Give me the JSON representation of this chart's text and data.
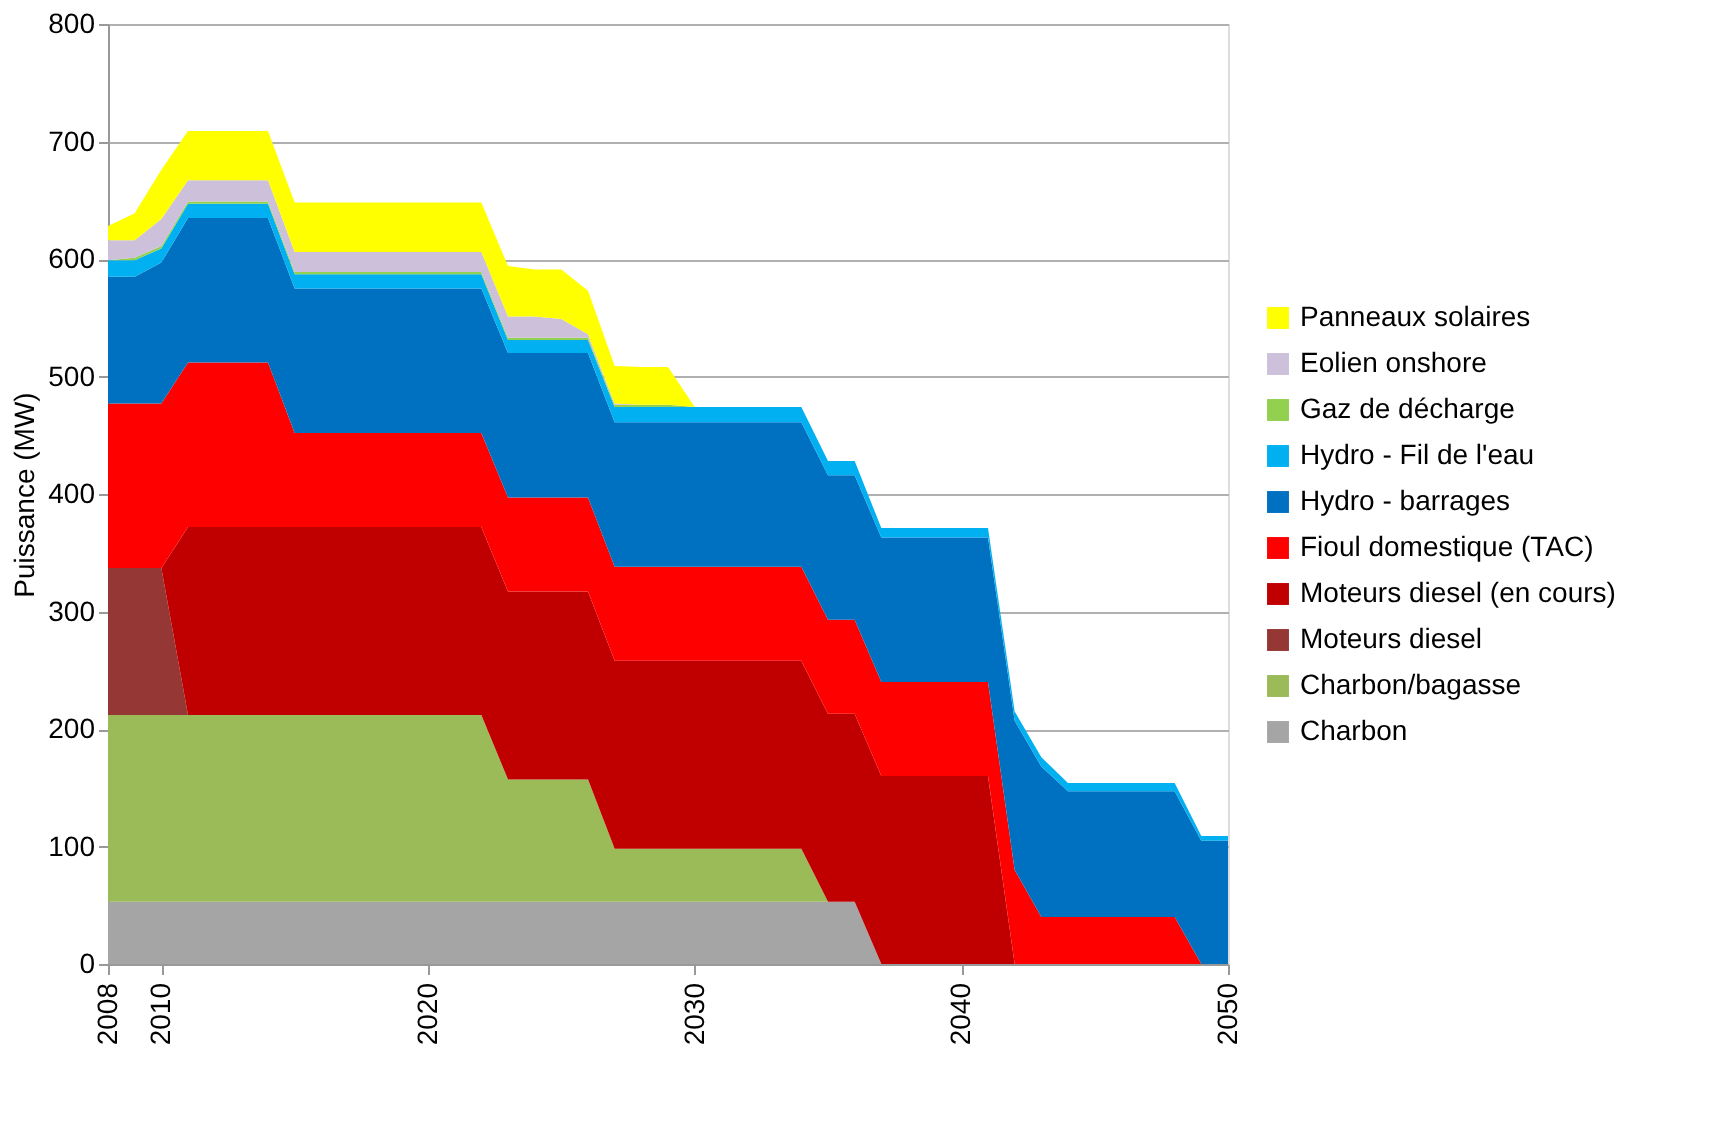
{
  "chart_data": {
    "type": "area",
    "stacked": true,
    "ylabel": "Puissance (MW)",
    "legend": "right",
    "grid": "y",
    "x": [
      2008,
      2009,
      2010,
      2011,
      2012,
      2013,
      2014,
      2015,
      2016,
      2017,
      2018,
      2019,
      2020,
      2021,
      2022,
      2023,
      2024,
      2025,
      2026,
      2027,
      2028,
      2029,
      2030,
      2031,
      2032,
      2033,
      2034,
      2035,
      2036,
      2037,
      2038,
      2039,
      2040,
      2041,
      2042,
      2043,
      2044,
      2045,
      2046,
      2047,
      2048,
      2049,
      2050
    ],
    "xlim": [
      2008,
      2050
    ],
    "xticks": [
      2008,
      2010,
      2020,
      2030,
      2040,
      2050
    ],
    "ylim": [
      0,
      800
    ],
    "yticks": [
      0,
      100,
      200,
      300,
      400,
      500,
      600,
      700,
      800
    ],
    "series": [
      {
        "name": "Charbon",
        "color": "#a5a5a5",
        "values": [
          53,
          53,
          53,
          53,
          53,
          53,
          53,
          53,
          53,
          53,
          53,
          53,
          53,
          53,
          53,
          53,
          53,
          53,
          53,
          53,
          53,
          53,
          53,
          53,
          53,
          53,
          53,
          53,
          53,
          0,
          0,
          0,
          0,
          0,
          0,
          0,
          0,
          0,
          0,
          0,
          0,
          0,
          0
        ]
      },
      {
        "name": "Charbon/bagasse",
        "color": "#9bbb59",
        "values": [
          159,
          159,
          159,
          159,
          159,
          159,
          159,
          159,
          159,
          159,
          159,
          159,
          159,
          159,
          159,
          104,
          104,
          104,
          104,
          45,
          45,
          45,
          45,
          45,
          45,
          45,
          45,
          0,
          0,
          0,
          0,
          0,
          0,
          0,
          0,
          0,
          0,
          0,
          0,
          0,
          0,
          0,
          0
        ]
      },
      {
        "name": "Moteurs diesel",
        "color": "#953735",
        "values": [
          125,
          125,
          125,
          0,
          0,
          0,
          0,
          0,
          0,
          0,
          0,
          0,
          0,
          0,
          0,
          0,
          0,
          0,
          0,
          0,
          0,
          0,
          0,
          0,
          0,
          0,
          0,
          0,
          0,
          0,
          0,
          0,
          0,
          0,
          0,
          0,
          0,
          0,
          0,
          0,
          0,
          0,
          0
        ]
      },
      {
        "name": "Moteurs diesel (en cours)",
        "color": "#c00000",
        "values": [
          0,
          0,
          0,
          160,
          160,
          160,
          160,
          160,
          160,
          160,
          160,
          160,
          160,
          160,
          160,
          160,
          160,
          160,
          160,
          160,
          160,
          160,
          160,
          160,
          160,
          160,
          160,
          160,
          160,
          160,
          160,
          160,
          160,
          160,
          0,
          0,
          0,
          0,
          0,
          0,
          0,
          0,
          0
        ]
      },
      {
        "name": "Fioul domestique (TAC)",
        "color": "#ff0000",
        "values": [
          140,
          140,
          140,
          140,
          140,
          140,
          140,
          80,
          80,
          80,
          80,
          80,
          80,
          80,
          80,
          80,
          80,
          80,
          80,
          80,
          80,
          80,
          80,
          80,
          80,
          80,
          80,
          80,
          80,
          80,
          80,
          80,
          80,
          80,
          80,
          40,
          40,
          40,
          40,
          40,
          40,
          0,
          0
        ]
      },
      {
        "name": "Hydro - barrages",
        "color": "#0070c0",
        "values": [
          108,
          108,
          120,
          123,
          123,
          123,
          123,
          123,
          123,
          123,
          123,
          123,
          123,
          123,
          123,
          123,
          123,
          123,
          123,
          123,
          123,
          123,
          123,
          123,
          123,
          123,
          123,
          123,
          123,
          123,
          123,
          123,
          123,
          123,
          127,
          128,
          107,
          107,
          107,
          107,
          107,
          105,
          105
        ]
      },
      {
        "name": "Hydro - Fil de l'eau",
        "color": "#00b0f0",
        "values": [
          14,
          14,
          12,
          12,
          12,
          12,
          12,
          12,
          12,
          12,
          12,
          12,
          12,
          12,
          12,
          11,
          11,
          11,
          11,
          13,
          13,
          13,
          13,
          13,
          13,
          13,
          13,
          12,
          12,
          8,
          8,
          8,
          8,
          8,
          8,
          8,
          7,
          7,
          7,
          7,
          7,
          4,
          4
        ]
      },
      {
        "name": "Gaz de décharge",
        "color": "#92d050",
        "values": [
          0,
          2,
          2,
          2,
          2,
          2,
          2,
          2,
          2,
          2,
          2,
          2,
          2,
          2,
          2,
          2,
          2,
          2,
          2,
          2,
          2,
          2,
          0,
          0,
          0,
          0,
          0,
          0,
          0,
          0,
          0,
          0,
          0,
          0,
          0,
          0,
          0,
          0,
          0,
          0,
          0,
          0,
          0
        ]
      },
      {
        "name": "Eolien onshore",
        "color": "#ccc0da",
        "values": [
          17,
          15,
          23,
          18,
          18,
          18,
          18,
          17,
          17,
          17,
          17,
          17,
          17,
          17,
          17,
          18,
          18,
          16,
          3,
          1,
          0,
          0,
          0,
          0,
          0,
          0,
          0,
          0,
          0,
          0,
          0,
          0,
          0,
          0,
          0,
          0,
          0,
          0,
          0,
          0,
          0,
          0,
          0
        ]
      },
      {
        "name": "Panneaux solaires",
        "color": "#ffff00",
        "values": [
          12,
          23,
          42,
          42,
          42,
          42,
          42,
          42,
          42,
          42,
          42,
          42,
          42,
          42,
          42,
          43,
          40,
          42,
          37,
          32,
          32,
          32,
          0,
          0,
          0,
          0,
          0,
          0,
          0,
          0,
          0,
          0,
          0,
          0,
          0,
          0,
          0,
          0,
          0,
          0,
          0,
          0,
          0
        ]
      }
    ]
  }
}
